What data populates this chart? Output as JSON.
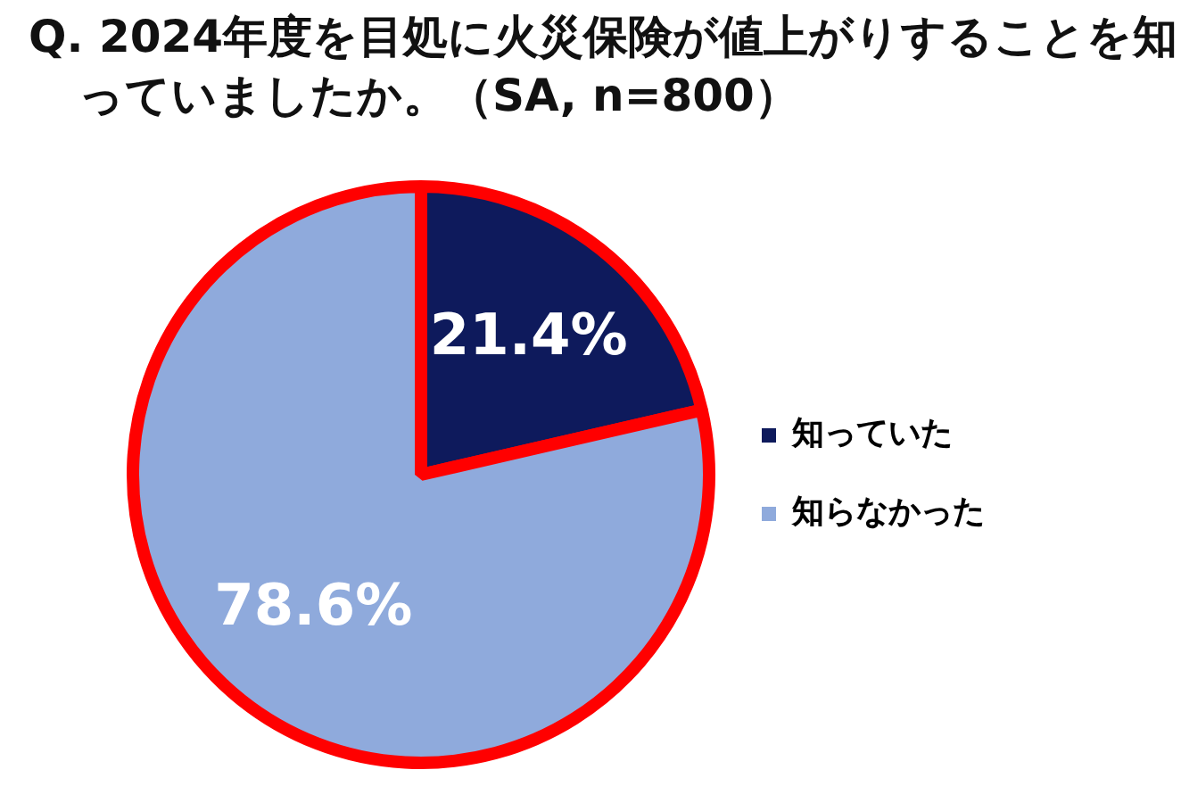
{
  "chart_data": {
    "type": "pie",
    "title": "Q. 2024年度を目処に火災保険が値上がりすることを知っていましたか。（SA, n=800）",
    "categories": [
      "知っていた",
      "知らなかった"
    ],
    "values": [
      21.4,
      78.6
    ],
    "colors": [
      "#0e1a5c",
      "#8faadc"
    ],
    "value_labels": [
      "21.4%",
      "78.6%"
    ],
    "legend": "right"
  }
}
